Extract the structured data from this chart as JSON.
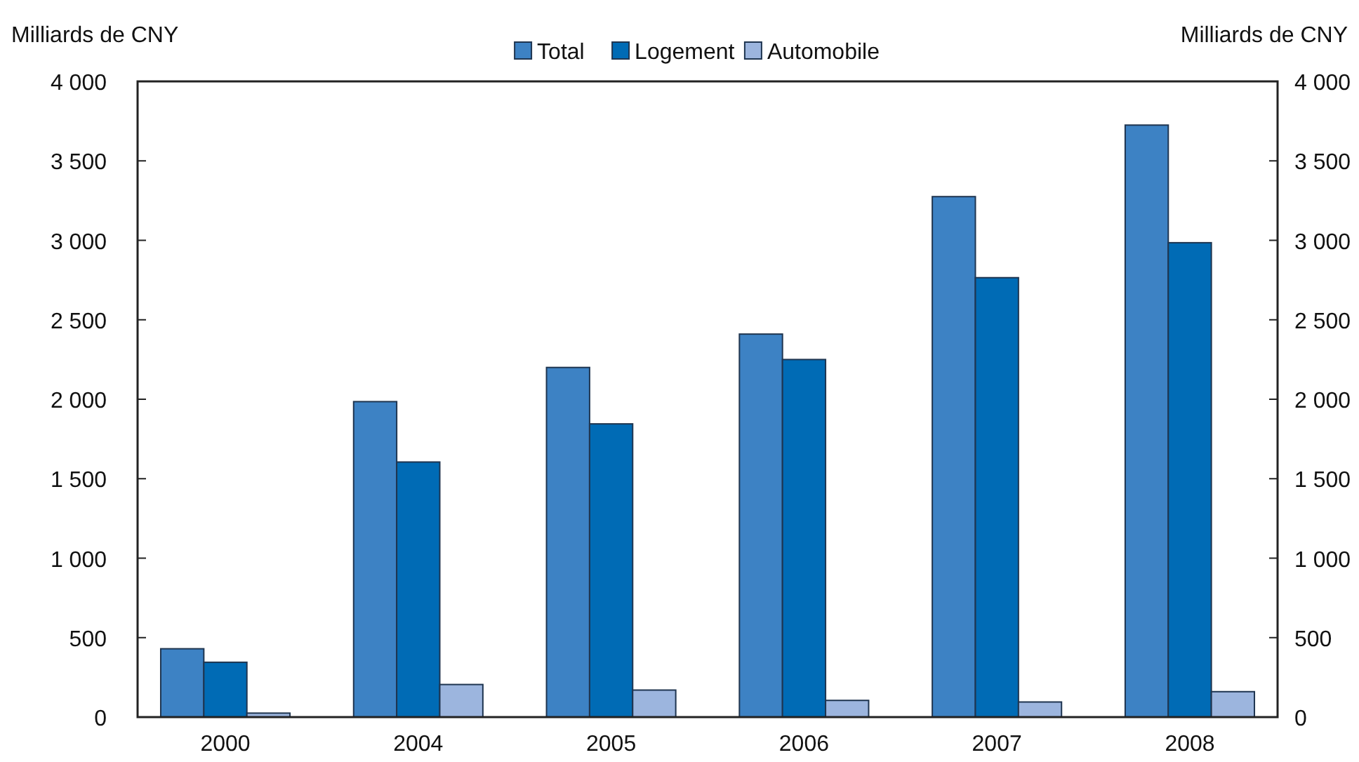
{
  "chart_data": {
    "type": "bar",
    "ylabel": "Milliards de CNY",
    "y2label": "Milliards de CNY",
    "categories": [
      "2000",
      "2004",
      "2005",
      "2006",
      "2007",
      "2008"
    ],
    "series": [
      {
        "name": "Total",
        "color": "#3d82c4",
        "values": [
          430,
          1985,
          2200,
          2410,
          3275,
          3725
        ]
      },
      {
        "name": "Logement",
        "color": "#006bb5",
        "values": [
          345,
          1605,
          1845,
          2250,
          2765,
          2985
        ]
      },
      {
        "name": "Automobile",
        "color": "#9cb5de",
        "values": [
          25,
          205,
          170,
          105,
          95,
          160
        ]
      }
    ],
    "ylim": [
      0,
      4000
    ],
    "yticks": [
      0,
      {
        "value": 500,
        "label": "500"
      },
      {
        "value": 1000,
        "label": "1 000"
      },
      {
        "value": 1500,
        "label": "1 500"
      },
      {
        "value": 2000,
        "label": "2 000"
      },
      {
        "value": 2500,
        "label": "2 500"
      },
      {
        "value": 3000,
        "label": "3 000"
      },
      {
        "value": 3500,
        "label": "3 500"
      },
      {
        "value": 4000,
        "label": "4 000"
      }
    ],
    "y2lim": [
      0,
      4000
    ],
    "y2ticks": [
      0,
      {
        "value": 500,
        "label": "500"
      },
      {
        "value": 1000,
        "label": "1 000"
      },
      {
        "value": 1500,
        "label": "1 500"
      },
      {
        "value": 2000,
        "label": "2 000"
      },
      {
        "value": 2500,
        "label": "2 500"
      },
      {
        "value": 3000,
        "label": "3 000"
      },
      {
        "value": 3500,
        "label": "3 500"
      },
      {
        "value": 4000,
        "label": "4 000"
      }
    ],
    "grid": false,
    "legend": "top"
  }
}
